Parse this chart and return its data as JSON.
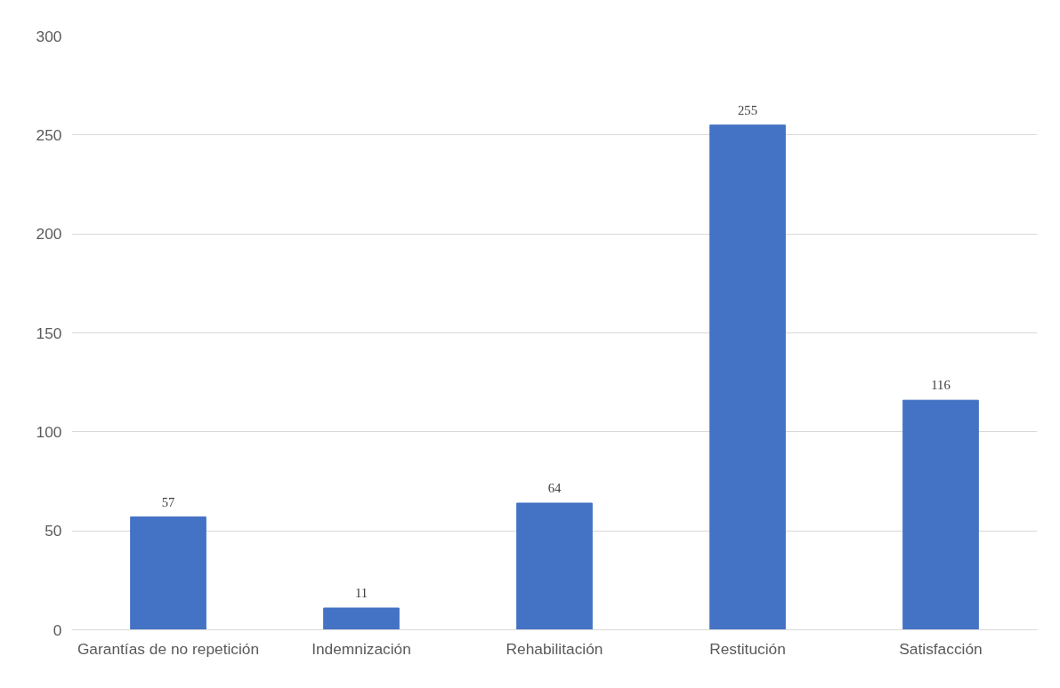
{
  "chart_data": {
    "type": "bar",
    "categories": [
      "Garantías de no repetición",
      "Indemnización",
      "Rehabilitación",
      "Restitución",
      "Satisfacción"
    ],
    "values": [
      57,
      11,
      64,
      255,
      116
    ],
    "color": "#4472c4",
    "ylim": [
      0,
      300
    ],
    "yticks": [
      0,
      50,
      100,
      150,
      200,
      250,
      300
    ],
    "grid": "y",
    "data_labels": true
  }
}
